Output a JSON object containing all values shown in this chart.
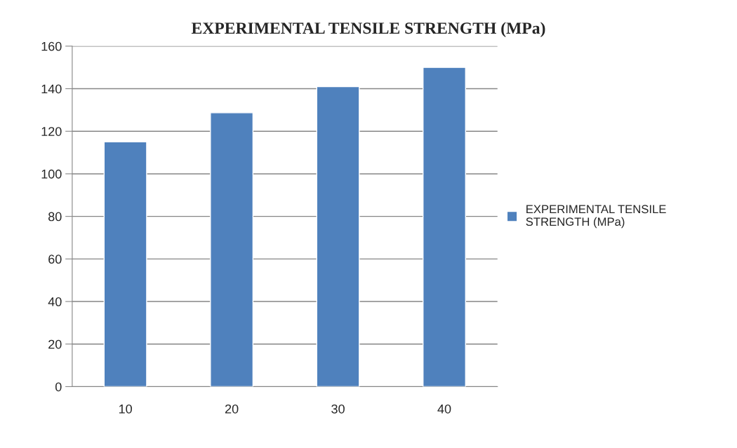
{
  "chart_data": {
    "type": "bar",
    "title": "EXPERIMENTAL TENSILE STRENGTH (MPa)",
    "categories": [
      "10",
      "20",
      "30",
      "40"
    ],
    "series": [
      {
        "name": "EXPERIMENTAL TENSILE STRENGTH (MPa)",
        "color": "#4f81bd",
        "values": [
          115,
          128.7,
          141,
          150
        ]
      }
    ],
    "ylim": [
      0,
      160
    ],
    "yticks": [
      0,
      20,
      40,
      60,
      80,
      100,
      120,
      140,
      160
    ],
    "grid": "y",
    "legend": "right"
  }
}
